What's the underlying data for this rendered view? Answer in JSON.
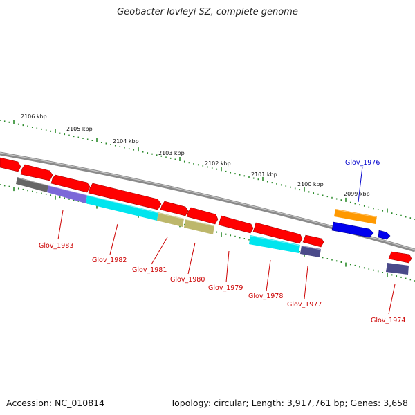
{
  "title": "Geobacter lovleyi SZ, complete genome",
  "footer": {
    "accession": "Accession: NC_010814",
    "summary": "Topology: circular; Length: 3,917,761 bp; Genes: 3,658"
  },
  "colors": {
    "backbone": "#8a8a8a",
    "tick_green": "#2a8a2a",
    "cds_red": "#ff0000",
    "label_red": "#cc0000",
    "label_blue": "#0000cc",
    "cds_gray": "#666666",
    "cds_violet": "#7b68d8",
    "cds_cyan": "#00e5ee",
    "cds_khaki": "#bdb76b",
    "cds_navy": "#4a4a8a",
    "cds_orange": "#ff9900",
    "cds_blue": "#0000ee"
  },
  "scale": {
    "kbp_labels": [
      "2106 kbp",
      "2105 kbp",
      "2104 kbp",
      "2103 kbp",
      "2102 kbp",
      "2101 kbp",
      "2100 kbp",
      "2099 kbp"
    ]
  },
  "gene_labels": [
    {
      "text": "Glov_1983",
      "color": "red"
    },
    {
      "text": "Glov_1982",
      "color": "red"
    },
    {
      "text": "Glov_1981",
      "color": "red"
    },
    {
      "text": "Glov_1980",
      "color": "red"
    },
    {
      "text": "Glov_1979",
      "color": "red"
    },
    {
      "text": "Glov_1978",
      "color": "red"
    },
    {
      "text": "Glov_1977",
      "color": "red"
    },
    {
      "text": "Glov_1976",
      "color": "blue"
    },
    {
      "text": "Glov_1974",
      "color": "red"
    }
  ]
}
